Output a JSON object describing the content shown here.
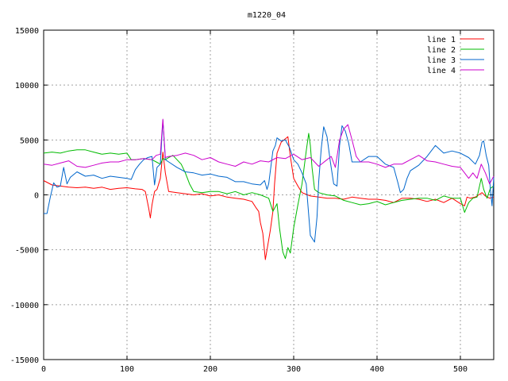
{
  "chart_data": {
    "type": "line",
    "title": "m1220_04",
    "xlabel": "",
    "ylabel": "",
    "xlim": [
      0,
      540
    ],
    "ylim": [
      -15000,
      15000
    ],
    "xticks": [
      0,
      100,
      200,
      300,
      400,
      500
    ],
    "yticks": [
      -15000,
      -10000,
      -5000,
      0,
      5000,
      10000,
      15000
    ],
    "grid": true,
    "legend_position": "top-right",
    "series": [
      {
        "name": "line 1",
        "color": "#ff0000",
        "points": [
          [
            0,
            1300
          ],
          [
            10,
            900
          ],
          [
            20,
            800
          ],
          [
            30,
            700
          ],
          [
            40,
            650
          ],
          [
            50,
            700
          ],
          [
            60,
            600
          ],
          [
            70,
            700
          ],
          [
            80,
            500
          ],
          [
            90,
            600
          ],
          [
            100,
            650
          ],
          [
            110,
            550
          ],
          [
            118,
            500
          ],
          [
            122,
            300
          ],
          [
            126,
            -1200
          ],
          [
            128,
            -2100
          ],
          [
            130,
            -900
          ],
          [
            133,
            300
          ],
          [
            136,
            500
          ],
          [
            140,
            1500
          ],
          [
            143,
            3900
          ],
          [
            146,
            2000
          ],
          [
            150,
            300
          ],
          [
            160,
            200
          ],
          [
            170,
            100
          ],
          [
            180,
            0
          ],
          [
            190,
            100
          ],
          [
            200,
            -100
          ],
          [
            210,
            0
          ],
          [
            220,
            -200
          ],
          [
            230,
            -300
          ],
          [
            240,
            -400
          ],
          [
            250,
            -600
          ],
          [
            255,
            -1200
          ],
          [
            258,
            -1500
          ],
          [
            260,
            -2500
          ],
          [
            263,
            -3500
          ],
          [
            266,
            -5900
          ],
          [
            268,
            -5000
          ],
          [
            272,
            -3200
          ],
          [
            275,
            -1500
          ],
          [
            277,
            1000
          ],
          [
            280,
            3800
          ],
          [
            285,
            4800
          ],
          [
            290,
            5100
          ],
          [
            293,
            5300
          ],
          [
            296,
            3500
          ],
          [
            300,
            1500
          ],
          [
            305,
            800
          ],
          [
            310,
            200
          ],
          [
            320,
            -100
          ],
          [
            330,
            -200
          ],
          [
            340,
            -300
          ],
          [
            350,
            -300
          ],
          [
            360,
            -400
          ],
          [
            370,
            -200
          ],
          [
            380,
            -300
          ],
          [
            390,
            -400
          ],
          [
            400,
            -400
          ],
          [
            410,
            -500
          ],
          [
            420,
            -700
          ],
          [
            430,
            -300
          ],
          [
            440,
            -300
          ],
          [
            450,
            -400
          ],
          [
            460,
            -600
          ],
          [
            470,
            -400
          ],
          [
            480,
            -700
          ],
          [
            490,
            -300
          ],
          [
            500,
            -800
          ],
          [
            505,
            -1000
          ],
          [
            508,
            -200
          ],
          [
            512,
            -300
          ],
          [
            518,
            -200
          ],
          [
            522,
            0
          ],
          [
            526,
            200
          ],
          [
            530,
            -100
          ],
          [
            535,
            -300
          ],
          [
            540,
            -200
          ]
        ]
      },
      {
        "name": "line 2",
        "color": "#00bb00",
        "points": [
          [
            0,
            3800
          ],
          [
            10,
            3900
          ],
          [
            20,
            3800
          ],
          [
            30,
            4000
          ],
          [
            40,
            4100
          ],
          [
            50,
            4100
          ],
          [
            60,
            3900
          ],
          [
            70,
            3700
          ],
          [
            80,
            3800
          ],
          [
            90,
            3700
          ],
          [
            100,
            3800
          ],
          [
            105,
            3200
          ],
          [
            110,
            3200
          ],
          [
            120,
            3300
          ],
          [
            130,
            3200
          ],
          [
            135,
            3000
          ],
          [
            140,
            2800
          ],
          [
            143,
            3300
          ],
          [
            146,
            3200
          ],
          [
            150,
            3400
          ],
          [
            155,
            3600
          ],
          [
            160,
            3200
          ],
          [
            165,
            2800
          ],
          [
            170,
            2000
          ],
          [
            175,
            1000
          ],
          [
            180,
            300
          ],
          [
            190,
            200
          ],
          [
            200,
            300
          ],
          [
            210,
            300
          ],
          [
            220,
            100
          ],
          [
            230,
            300
          ],
          [
            240,
            0
          ],
          [
            250,
            200
          ],
          [
            260,
            0
          ],
          [
            270,
            -300
          ],
          [
            275,
            -1500
          ],
          [
            280,
            -800
          ],
          [
            283,
            -3000
          ],
          [
            287,
            -5200
          ],
          [
            290,
            -5800
          ],
          [
            293,
            -4800
          ],
          [
            296,
            -5300
          ],
          [
            300,
            -3000
          ],
          [
            305,
            -900
          ],
          [
            310,
            1000
          ],
          [
            315,
            4000
          ],
          [
            318,
            5600
          ],
          [
            320,
            4500
          ],
          [
            322,
            2500
          ],
          [
            325,
            500
          ],
          [
            330,
            200
          ],
          [
            340,
            0
          ],
          [
            350,
            -100
          ],
          [
            360,
            -500
          ],
          [
            370,
            -700
          ],
          [
            380,
            -900
          ],
          [
            390,
            -800
          ],
          [
            400,
            -600
          ],
          [
            410,
            -900
          ],
          [
            420,
            -700
          ],
          [
            430,
            -500
          ],
          [
            440,
            -400
          ],
          [
            450,
            -300
          ],
          [
            460,
            -300
          ],
          [
            470,
            -500
          ],
          [
            480,
            -100
          ],
          [
            490,
            -300
          ],
          [
            500,
            -300
          ],
          [
            505,
            -1600
          ],
          [
            510,
            -700
          ],
          [
            515,
            -300
          ],
          [
            520,
            -200
          ],
          [
            525,
            1500
          ],
          [
            528,
            500
          ],
          [
            532,
            -300
          ],
          [
            536,
            600
          ],
          [
            540,
            800
          ]
        ]
      },
      {
        "name": "line 3",
        "color": "#0066cc",
        "points": [
          [
            0,
            -1700
          ],
          [
            4,
            -1700
          ],
          [
            8,
            -200
          ],
          [
            12,
            1100
          ],
          [
            16,
            700
          ],
          [
            20,
            800
          ],
          [
            24,
            2500
          ],
          [
            28,
            1000
          ],
          [
            32,
            1600
          ],
          [
            40,
            2100
          ],
          [
            50,
            1700
          ],
          [
            60,
            1800
          ],
          [
            70,
            1500
          ],
          [
            80,
            1700
          ],
          [
            90,
            1600
          ],
          [
            100,
            1500
          ],
          [
            105,
            1400
          ],
          [
            110,
            2300
          ],
          [
            115,
            2800
          ],
          [
            120,
            3200
          ],
          [
            125,
            3400
          ],
          [
            130,
            3500
          ],
          [
            133,
            900
          ],
          [
            136,
            2500
          ],
          [
            140,
            2800
          ],
          [
            143,
            6800
          ],
          [
            146,
            3200
          ],
          [
            150,
            3000
          ],
          [
            160,
            2500
          ],
          [
            170,
            2100
          ],
          [
            180,
            2000
          ],
          [
            190,
            1800
          ],
          [
            200,
            1900
          ],
          [
            210,
            1700
          ],
          [
            220,
            1600
          ],
          [
            230,
            1200
          ],
          [
            240,
            1200
          ],
          [
            250,
            1000
          ],
          [
            260,
            900
          ],
          [
            265,
            1300
          ],
          [
            268,
            500
          ],
          [
            270,
            1000
          ],
          [
            275,
            4000
          ],
          [
            278,
            4500
          ],
          [
            280,
            5200
          ],
          [
            285,
            4900
          ],
          [
            290,
            5000
          ],
          [
            295,
            4300
          ],
          [
            300,
            3200
          ],
          [
            305,
            2800
          ],
          [
            310,
            2000
          ],
          [
            315,
            1000
          ],
          [
            320,
            -3700
          ],
          [
            325,
            -4300
          ],
          [
            328,
            -2000
          ],
          [
            330,
            1200
          ],
          [
            333,
            4200
          ],
          [
            336,
            6200
          ],
          [
            340,
            5300
          ],
          [
            344,
            3000
          ],
          [
            348,
            1000
          ],
          [
            352,
            800
          ],
          [
            355,
            4500
          ],
          [
            358,
            6300
          ],
          [
            362,
            5800
          ],
          [
            366,
            4700
          ],
          [
            370,
            3000
          ],
          [
            380,
            3000
          ],
          [
            390,
            3500
          ],
          [
            400,
            3500
          ],
          [
            410,
            2800
          ],
          [
            420,
            2500
          ],
          [
            425,
            1100
          ],
          [
            428,
            200
          ],
          [
            432,
            500
          ],
          [
            436,
            1500
          ],
          [
            440,
            2200
          ],
          [
            450,
            2700
          ],
          [
            460,
            3500
          ],
          [
            470,
            4500
          ],
          [
            480,
            3800
          ],
          [
            490,
            4000
          ],
          [
            500,
            3800
          ],
          [
            510,
            3400
          ],
          [
            518,
            2800
          ],
          [
            523,
            3600
          ],
          [
            526,
            4800
          ],
          [
            528,
            4900
          ],
          [
            531,
            3600
          ],
          [
            534,
            2700
          ],
          [
            536,
            500
          ],
          [
            538,
            -1000
          ],
          [
            540,
            1600
          ]
        ]
      },
      {
        "name": "line 4",
        "color": "#cc00cc",
        "points": [
          [
            0,
            2800
          ],
          [
            10,
            2700
          ],
          [
            20,
            2900
          ],
          [
            30,
            3100
          ],
          [
            40,
            2600
          ],
          [
            50,
            2500
          ],
          [
            60,
            2700
          ],
          [
            70,
            2900
          ],
          [
            80,
            3000
          ],
          [
            90,
            3000
          ],
          [
            100,
            3200
          ],
          [
            110,
            3200
          ],
          [
            120,
            3300
          ],
          [
            130,
            3200
          ],
          [
            135,
            3600
          ],
          [
            140,
            3700
          ],
          [
            143,
            6900
          ],
          [
            146,
            3400
          ],
          [
            150,
            3500
          ],
          [
            160,
            3600
          ],
          [
            170,
            3800
          ],
          [
            180,
            3600
          ],
          [
            190,
            3200
          ],
          [
            200,
            3400
          ],
          [
            210,
            3000
          ],
          [
            220,
            2800
          ],
          [
            230,
            2600
          ],
          [
            240,
            3000
          ],
          [
            250,
            2800
          ],
          [
            260,
            3100
          ],
          [
            270,
            3000
          ],
          [
            280,
            3400
          ],
          [
            290,
            3300
          ],
          [
            300,
            3700
          ],
          [
            310,
            3200
          ],
          [
            320,
            3400
          ],
          [
            330,
            2600
          ],
          [
            340,
            3200
          ],
          [
            345,
            3500
          ],
          [
            350,
            2500
          ],
          [
            355,
            5000
          ],
          [
            360,
            6000
          ],
          [
            365,
            6400
          ],
          [
            370,
            5000
          ],
          [
            375,
            3500
          ],
          [
            380,
            3000
          ],
          [
            390,
            3000
          ],
          [
            400,
            2800
          ],
          [
            410,
            2500
          ],
          [
            420,
            2800
          ],
          [
            430,
            2800
          ],
          [
            440,
            3200
          ],
          [
            450,
            3600
          ],
          [
            460,
            3100
          ],
          [
            470,
            3000
          ],
          [
            480,
            2800
          ],
          [
            490,
            2600
          ],
          [
            500,
            2500
          ],
          [
            505,
            2000
          ],
          [
            510,
            1500
          ],
          [
            515,
            2000
          ],
          [
            520,
            1500
          ],
          [
            525,
            2800
          ],
          [
            530,
            2000
          ],
          [
            535,
            1000
          ],
          [
            540,
            1700
          ]
        ]
      }
    ]
  }
}
